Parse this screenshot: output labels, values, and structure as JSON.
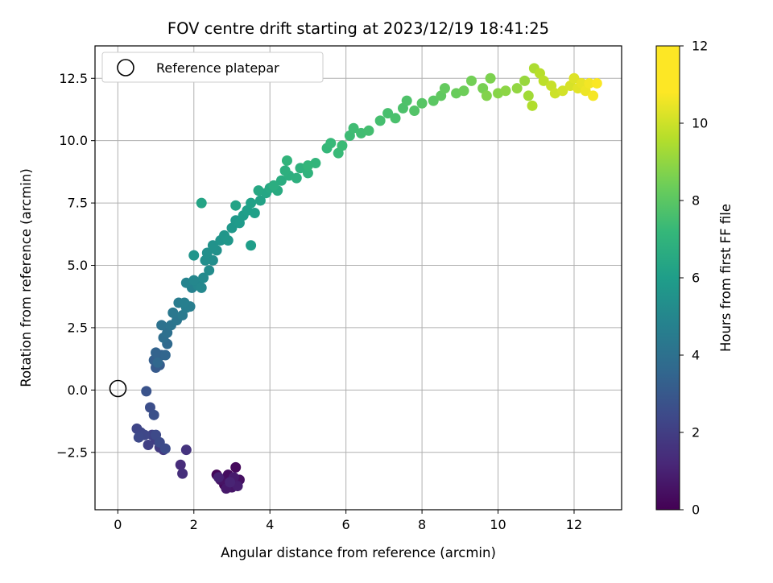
{
  "chart_data": {
    "type": "scatter",
    "title": "FOV centre drift starting at 2023/12/19 18:41:25",
    "xlabel": "Angular distance from reference (arcmin)",
    "ylabel": "Rotation from reference (arcmin)",
    "xlim": [
      -0.6,
      13.25
    ],
    "ylim": [
      -4.8,
      13.8
    ],
    "xticks": [
      0,
      2,
      4,
      6,
      8,
      10,
      12
    ],
    "yticks": [
      -2.5,
      0.0,
      2.5,
      5.0,
      7.5,
      10.0,
      12.5
    ],
    "xtick_labels": [
      "0",
      "2",
      "4",
      "6",
      "8",
      "10",
      "12"
    ],
    "ytick_labels": [
      "−2.5",
      "0.0",
      "2.5",
      "5.0",
      "7.5",
      "10.0",
      "12.5"
    ],
    "grid": true,
    "legend": {
      "placement": "top-left",
      "entries": [
        "Reference platepar"
      ]
    },
    "reference_point": {
      "x": 0,
      "y": 0,
      "name": "Reference platepar"
    },
    "colorbar": {
      "label": "Hours from first FF file",
      "range": [
        0,
        12
      ],
      "ticks": [
        0,
        2,
        4,
        6,
        8,
        10,
        12
      ],
      "tick_labels": [
        "0",
        "2",
        "4",
        "6",
        "8",
        "10",
        "12"
      ],
      "colormap": "viridis"
    },
    "points": [
      {
        "x": 2.6,
        "y": -3.4,
        "t": 0.1
      },
      {
        "x": 2.8,
        "y": -3.8,
        "t": 0.2
      },
      {
        "x": 3.1,
        "y": -3.1,
        "t": 0.3
      },
      {
        "x": 2.9,
        "y": -3.4,
        "t": 0.4
      },
      {
        "x": 3.2,
        "y": -3.6,
        "t": 0.5
      },
      {
        "x": 2.7,
        "y": -3.6,
        "t": 0.6
      },
      {
        "x": 3.0,
        "y": -3.9,
        "t": 0.7
      },
      {
        "x": 2.85,
        "y": -3.95,
        "t": 0.8
      },
      {
        "x": 3.05,
        "y": -3.5,
        "t": 0.9
      },
      {
        "x": 3.15,
        "y": -3.85,
        "t": 1.0
      },
      {
        "x": 2.65,
        "y": -3.5,
        "t": 1.1
      },
      {
        "x": 2.95,
        "y": -3.7,
        "t": 1.2
      },
      {
        "x": 1.65,
        "y": -3.0,
        "t": 1.5
      },
      {
        "x": 1.7,
        "y": -3.35,
        "t": 1.6
      },
      {
        "x": 1.8,
        "y": -2.4,
        "t": 1.8
      },
      {
        "x": 1.2,
        "y": -2.4,
        "t": 2.0
      },
      {
        "x": 1.1,
        "y": -2.3,
        "t": 2.1
      },
      {
        "x": 1.0,
        "y": -2.0,
        "t": 2.2
      },
      {
        "x": 0.8,
        "y": -2.2,
        "t": 2.3
      },
      {
        "x": 0.9,
        "y": -1.8,
        "t": 2.4
      },
      {
        "x": 0.5,
        "y": -1.55,
        "t": 2.5
      },
      {
        "x": 0.6,
        "y": -1.7,
        "t": 2.55
      },
      {
        "x": 0.7,
        "y": -1.8,
        "t": 2.6
      },
      {
        "x": 0.55,
        "y": -1.9,
        "t": 2.65
      },
      {
        "x": 1.0,
        "y": -1.8,
        "t": 2.7
      },
      {
        "x": 1.1,
        "y": -2.1,
        "t": 2.75
      },
      {
        "x": 1.25,
        "y": -2.35,
        "t": 2.8
      },
      {
        "x": 0.85,
        "y": -0.7,
        "t": 2.9
      },
      {
        "x": 0.95,
        "y": -1.0,
        "t": 3.0
      },
      {
        "x": 0.75,
        "y": -0.05,
        "t": 3.1
      },
      {
        "x": 1.0,
        "y": 0.9,
        "t": 3.4
      },
      {
        "x": 1.1,
        "y": 1.0,
        "t": 3.5
      },
      {
        "x": 0.95,
        "y": 1.2,
        "t": 3.6
      },
      {
        "x": 1.15,
        "y": 1.4,
        "t": 3.7
      },
      {
        "x": 1.0,
        "y": 1.5,
        "t": 3.8
      },
      {
        "x": 1.25,
        "y": 1.4,
        "t": 3.9
      },
      {
        "x": 1.05,
        "y": 1.1,
        "t": 4.0
      },
      {
        "x": 1.3,
        "y": 1.85,
        "t": 4.1
      },
      {
        "x": 1.2,
        "y": 2.1,
        "t": 4.3
      },
      {
        "x": 1.3,
        "y": 2.3,
        "t": 4.4
      },
      {
        "x": 1.15,
        "y": 2.6,
        "t": 4.5
      },
      {
        "x": 1.4,
        "y": 2.6,
        "t": 4.6
      },
      {
        "x": 1.55,
        "y": 2.8,
        "t": 4.7
      },
      {
        "x": 1.45,
        "y": 3.1,
        "t": 4.8
      },
      {
        "x": 1.7,
        "y": 3.0,
        "t": 4.9
      },
      {
        "x": 1.6,
        "y": 3.5,
        "t": 5.0
      },
      {
        "x": 1.8,
        "y": 3.3,
        "t": 5.1
      },
      {
        "x": 1.9,
        "y": 3.35,
        "t": 5.15
      },
      {
        "x": 1.75,
        "y": 3.5,
        "t": 5.2
      },
      {
        "x": 1.95,
        "y": 4.1,
        "t": 5.3
      },
      {
        "x": 1.8,
        "y": 4.3,
        "t": 5.4
      },
      {
        "x": 2.1,
        "y": 4.2,
        "t": 5.5
      },
      {
        "x": 2.0,
        "y": 4.4,
        "t": 5.55
      },
      {
        "x": 2.2,
        "y": 4.1,
        "t": 5.6
      },
      {
        "x": 2.25,
        "y": 4.5,
        "t": 5.7
      },
      {
        "x": 2.4,
        "y": 4.8,
        "t": 5.8
      },
      {
        "x": 2.5,
        "y": 5.2,
        "t": 5.9
      },
      {
        "x": 2.3,
        "y": 5.2,
        "t": 5.95
      },
      {
        "x": 2.35,
        "y": 5.5,
        "t": 6.0
      },
      {
        "x": 2.6,
        "y": 5.6,
        "t": 6.05
      },
      {
        "x": 2.5,
        "y": 5.8,
        "t": 6.1
      },
      {
        "x": 2.7,
        "y": 6.0,
        "t": 6.2
      },
      {
        "x": 2.0,
        "y": 5.4,
        "t": 6.25
      },
      {
        "x": 2.8,
        "y": 6.2,
        "t": 6.3
      },
      {
        "x": 2.9,
        "y": 6.0,
        "t": 6.35
      },
      {
        "x": 3.0,
        "y": 6.5,
        "t": 6.4
      },
      {
        "x": 3.1,
        "y": 6.8,
        "t": 6.45
      },
      {
        "x": 3.2,
        "y": 6.7,
        "t": 6.5
      },
      {
        "x": 3.3,
        "y": 7.0,
        "t": 6.6
      },
      {
        "x": 3.5,
        "y": 5.8,
        "t": 6.65
      },
      {
        "x": 3.4,
        "y": 7.2,
        "t": 6.7
      },
      {
        "x": 3.6,
        "y": 7.1,
        "t": 6.75
      },
      {
        "x": 3.5,
        "y": 7.5,
        "t": 6.8
      },
      {
        "x": 3.75,
        "y": 7.6,
        "t": 6.9
      },
      {
        "x": 3.1,
        "y": 7.4,
        "t": 6.95
      },
      {
        "x": 2.2,
        "y": 7.5,
        "t": 7.0
      },
      {
        "x": 3.9,
        "y": 7.9,
        "t": 7.1
      },
      {
        "x": 3.7,
        "y": 8.0,
        "t": 7.15
      },
      {
        "x": 4.0,
        "y": 8.1,
        "t": 7.2
      },
      {
        "x": 4.2,
        "y": 8.0,
        "t": 7.3
      },
      {
        "x": 4.3,
        "y": 8.4,
        "t": 7.4
      },
      {
        "x": 4.1,
        "y": 8.2,
        "t": 7.45
      },
      {
        "x": 4.5,
        "y": 8.6,
        "t": 7.5
      },
      {
        "x": 4.4,
        "y": 8.8,
        "t": 7.55
      },
      {
        "x": 4.7,
        "y": 8.5,
        "t": 7.6
      },
      {
        "x": 4.8,
        "y": 8.9,
        "t": 7.7
      },
      {
        "x": 5.0,
        "y": 8.7,
        "t": 7.75
      },
      {
        "x": 4.45,
        "y": 9.2,
        "t": 7.8
      },
      {
        "x": 5.2,
        "y": 9.1,
        "t": 7.85
      },
      {
        "x": 5.0,
        "y": 9.0,
        "t": 7.9
      },
      {
        "x": 5.5,
        "y": 9.7,
        "t": 8.0
      },
      {
        "x": 5.6,
        "y": 9.9,
        "t": 8.05
      },
      {
        "x": 5.8,
        "y": 9.5,
        "t": 8.1
      },
      {
        "x": 5.9,
        "y": 9.8,
        "t": 8.15
      },
      {
        "x": 6.1,
        "y": 10.2,
        "t": 8.2
      },
      {
        "x": 6.2,
        "y": 10.5,
        "t": 8.25
      },
      {
        "x": 6.4,
        "y": 10.3,
        "t": 8.3
      },
      {
        "x": 6.6,
        "y": 10.4,
        "t": 8.35
      },
      {
        "x": 6.9,
        "y": 10.8,
        "t": 8.4
      },
      {
        "x": 7.1,
        "y": 11.1,
        "t": 8.45
      },
      {
        "x": 7.3,
        "y": 10.9,
        "t": 8.5
      },
      {
        "x": 7.5,
        "y": 11.3,
        "t": 8.55
      },
      {
        "x": 7.6,
        "y": 11.6,
        "t": 8.6
      },
      {
        "x": 7.8,
        "y": 11.2,
        "t": 8.7
      },
      {
        "x": 8.0,
        "y": 11.5,
        "t": 8.8
      },
      {
        "x": 8.3,
        "y": 11.6,
        "t": 8.9
      },
      {
        "x": 8.5,
        "y": 11.8,
        "t": 9.0
      },
      {
        "x": 8.6,
        "y": 12.1,
        "t": 9.1
      },
      {
        "x": 8.9,
        "y": 11.9,
        "t": 9.2
      },
      {
        "x": 9.1,
        "y": 12.0,
        "t": 9.3
      },
      {
        "x": 9.3,
        "y": 12.4,
        "t": 9.4
      },
      {
        "x": 9.6,
        "y": 12.1,
        "t": 9.5
      },
      {
        "x": 9.8,
        "y": 12.5,
        "t": 9.6
      },
      {
        "x": 9.7,
        "y": 11.8,
        "t": 9.7
      },
      {
        "x": 10.0,
        "y": 11.9,
        "t": 9.8
      },
      {
        "x": 10.2,
        "y": 12.0,
        "t": 9.9
      },
      {
        "x": 10.5,
        "y": 12.1,
        "t": 10.0
      },
      {
        "x": 10.7,
        "y": 12.4,
        "t": 10.1
      },
      {
        "x": 10.8,
        "y": 11.8,
        "t": 10.3
      },
      {
        "x": 10.95,
        "y": 12.9,
        "t": 10.5
      },
      {
        "x": 10.9,
        "y": 11.4,
        "t": 10.6
      },
      {
        "x": 11.1,
        "y": 12.7,
        "t": 10.7
      },
      {
        "x": 11.2,
        "y": 12.4,
        "t": 10.8
      },
      {
        "x": 11.4,
        "y": 12.2,
        "t": 11.0
      },
      {
        "x": 11.5,
        "y": 11.9,
        "t": 11.1
      },
      {
        "x": 11.7,
        "y": 12.0,
        "t": 11.2
      },
      {
        "x": 11.9,
        "y": 12.2,
        "t": 11.3
      },
      {
        "x": 12.0,
        "y": 12.5,
        "t": 11.4
      },
      {
        "x": 12.1,
        "y": 12.1,
        "t": 11.5
      },
      {
        "x": 12.2,
        "y": 12.3,
        "t": 11.6
      },
      {
        "x": 12.3,
        "y": 12.0,
        "t": 11.7
      },
      {
        "x": 12.4,
        "y": 12.3,
        "t": 11.8
      },
      {
        "x": 12.5,
        "y": 11.8,
        "t": 11.85
      },
      {
        "x": 12.6,
        "y": 12.3,
        "t": 11.95
      }
    ]
  }
}
